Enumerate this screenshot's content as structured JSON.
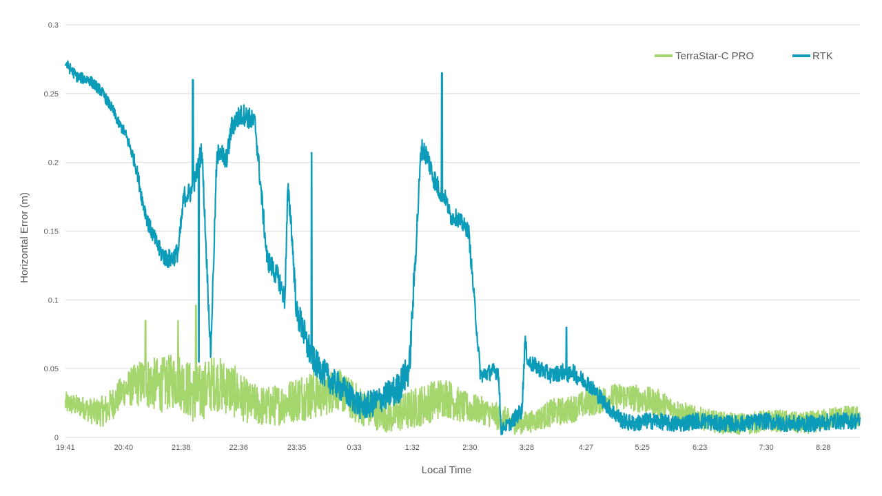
{
  "chart_data": {
    "type": "line",
    "title": "",
    "xlabel": "Local Time",
    "ylabel": "Horizontal Error (m)",
    "ylim": [
      0,
      0.3
    ],
    "yticks": [
      0,
      0.05,
      0.1,
      0.15,
      0.2,
      0.25,
      0.3
    ],
    "ytick_labels": [
      "0",
      "0.05",
      "0.1",
      "0.15",
      "0.2",
      "0.25",
      "0.3"
    ],
    "xlim": [
      0,
      13.4
    ],
    "x_unit": "hours after 19:41",
    "xticks": [
      0,
      0.98,
      1.95,
      2.92,
      3.9,
      4.87,
      5.85,
      6.82,
      7.78,
      8.78,
      9.73,
      10.7,
      11.82,
      12.78
    ],
    "xtick_labels": [
      "19:41",
      "20:40",
      "21:38",
      "22:36",
      "23:35",
      "0:33",
      "1:32",
      "2:30",
      "3:28",
      "4:27",
      "5:25",
      "6:23",
      "7:30",
      "8:28"
    ],
    "legend_position": "top-right",
    "grid": true,
    "series": [
      {
        "name": "TerraStar-C PRO",
        "color": "#a5d66d",
        "x": [
          0,
          0.3,
          0.5,
          0.7,
          1.0,
          1.3,
          1.6,
          1.9,
          2.2,
          2.5,
          2.8,
          3.1,
          3.4,
          3.7,
          4.0,
          4.3,
          4.6,
          4.9,
          5.2,
          5.5,
          5.8,
          6.1,
          6.4,
          6.7,
          7.0,
          7.3,
          7.6,
          7.9,
          8.2,
          8.5,
          8.8,
          9.1,
          9.4,
          9.7,
          10.0,
          10.3,
          10.6,
          10.9,
          11.2,
          11.5,
          11.8,
          12.1,
          12.4,
          12.7,
          13.0,
          13.4
        ],
        "y": [
          0.025,
          0.022,
          0.018,
          0.02,
          0.035,
          0.04,
          0.038,
          0.042,
          0.03,
          0.04,
          0.035,
          0.025,
          0.022,
          0.025,
          0.03,
          0.032,
          0.035,
          0.025,
          0.018,
          0.015,
          0.02,
          0.025,
          0.03,
          0.022,
          0.02,
          0.015,
          0.01,
          0.012,
          0.018,
          0.02,
          0.025,
          0.028,
          0.03,
          0.028,
          0.025,
          0.02,
          0.015,
          0.012,
          0.01,
          0.01,
          0.012,
          0.012,
          0.01,
          0.012,
          0.015,
          0.015
        ],
        "noise": [
          0.008,
          0.008,
          0.01,
          0.012,
          0.012,
          0.018,
          0.02,
          0.02,
          0.022,
          0.02,
          0.02,
          0.015,
          0.015,
          0.015,
          0.018,
          0.018,
          0.015,
          0.015,
          0.012,
          0.012,
          0.015,
          0.015,
          0.015,
          0.012,
          0.01,
          0.01,
          0.008,
          0.008,
          0.01,
          0.01,
          0.01,
          0.01,
          0.01,
          0.01,
          0.01,
          0.008,
          0.008,
          0.008,
          0.008,
          0.008,
          0.008,
          0.008,
          0.008,
          0.008,
          0.008,
          0.008
        ]
      },
      {
        "name": "RTK",
        "color": "#0c9cba",
        "x": [
          0,
          0.2,
          0.4,
          0.6,
          0.8,
          0.9,
          1.0,
          1.1,
          1.2,
          1.3,
          1.4,
          1.5,
          1.6,
          1.7,
          1.8,
          1.9,
          2.0,
          2.1,
          2.15,
          2.3,
          2.45,
          2.55,
          2.6,
          2.65,
          2.7,
          2.75,
          2.8,
          2.9,
          3.0,
          3.1,
          3.2,
          3.4,
          3.6,
          3.7,
          3.75,
          3.8,
          3.9,
          4.0,
          4.05,
          4.1,
          4.15,
          4.2,
          4.3,
          4.4,
          4.5,
          4.6,
          4.8,
          5.0,
          5.2,
          5.4,
          5.6,
          5.8,
          6.0,
          6.1,
          6.2,
          6.3,
          6.4,
          6.5,
          6.6,
          6.7,
          6.8,
          7.0,
          7.2,
          7.3,
          7.35,
          7.4,
          7.5,
          7.6,
          7.7,
          7.75,
          7.8,
          8.0,
          8.2,
          8.4,
          8.5,
          8.55,
          8.6,
          8.8,
          9.0,
          9.2,
          9.4,
          9.6,
          9.8,
          10.0,
          10.2,
          10.4,
          10.6,
          10.8,
          11.0,
          11.4,
          11.8,
          12.2,
          12.6,
          13.0,
          13.4
        ],
        "y": [
          0.272,
          0.262,
          0.26,
          0.252,
          0.238,
          0.228,
          0.222,
          0.21,
          0.195,
          0.172,
          0.155,
          0.145,
          0.135,
          0.13,
          0.13,
          0.135,
          0.175,
          0.178,
          0.18,
          0.21,
          0.06,
          0.2,
          0.21,
          0.205,
          0.2,
          0.21,
          0.225,
          0.232,
          0.235,
          0.232,
          0.228,
          0.13,
          0.115,
          0.1,
          0.18,
          0.16,
          0.09,
          0.08,
          0.07,
          0.065,
          0.06,
          0.055,
          0.05,
          0.045,
          0.04,
          0.038,
          0.03,
          0.022,
          0.025,
          0.03,
          0.035,
          0.05,
          0.21,
          0.205,
          0.19,
          0.18,
          0.175,
          0.16,
          0.16,
          0.155,
          0.15,
          0.045,
          0.048,
          0.048,
          0.005,
          0.008,
          0.01,
          0.015,
          0.02,
          0.07,
          0.055,
          0.05,
          0.045,
          0.048,
          0.045,
          0.05,
          0.045,
          0.04,
          0.03,
          0.02,
          0.012,
          0.01,
          0.012,
          0.012,
          0.01,
          0.01,
          0.012,
          0.012,
          0.01,
          0.01,
          0.012,
          0.01,
          0.01,
          0.012,
          0.012
        ],
        "noise": [
          0.004,
          0.004,
          0.004,
          0.004,
          0.004,
          0.004,
          0.004,
          0.005,
          0.005,
          0.006,
          0.006,
          0.006,
          0.007,
          0.007,
          0.007,
          0.007,
          0.008,
          0.008,
          0.008,
          0.008,
          0.006,
          0.008,
          0.008,
          0.008,
          0.008,
          0.008,
          0.008,
          0.008,
          0.008,
          0.008,
          0.008,
          0.008,
          0.008,
          0.008,
          0.008,
          0.008,
          0.01,
          0.012,
          0.012,
          0.012,
          0.01,
          0.01,
          0.01,
          0.01,
          0.01,
          0.01,
          0.01,
          0.01,
          0.01,
          0.01,
          0.012,
          0.012,
          0.008,
          0.008,
          0.008,
          0.008,
          0.006,
          0.006,
          0.006,
          0.006,
          0.006,
          0.006,
          0.006,
          0.006,
          0.004,
          0.004,
          0.005,
          0.006,
          0.006,
          0.006,
          0.006,
          0.006,
          0.006,
          0.006,
          0.006,
          0.006,
          0.006,
          0.006,
          0.006,
          0.006,
          0.006,
          0.006,
          0.006,
          0.006,
          0.006,
          0.006,
          0.006,
          0.006,
          0.006,
          0.006,
          0.006,
          0.006,
          0.006,
          0.006,
          0.006
        ]
      }
    ],
    "spikes": [
      {
        "series": "RTK",
        "x": 2.15,
        "y": 0.26
      },
      {
        "series": "RTK",
        "x": 2.25,
        "y": 0.055
      },
      {
        "series": "RTK",
        "x": 4.15,
        "y": 0.207
      },
      {
        "series": "RTK",
        "x": 6.35,
        "y": 0.265
      },
      {
        "series": "RTK",
        "x": 8.45,
        "y": 0.08
      },
      {
        "series": "TerraStar-C PRO",
        "x": 2.2,
        "y": 0.096
      },
      {
        "series": "TerraStar-C PRO",
        "x": 1.9,
        "y": 0.085
      },
      {
        "series": "TerraStar-C PRO",
        "x": 1.35,
        "y": 0.085
      }
    ]
  }
}
